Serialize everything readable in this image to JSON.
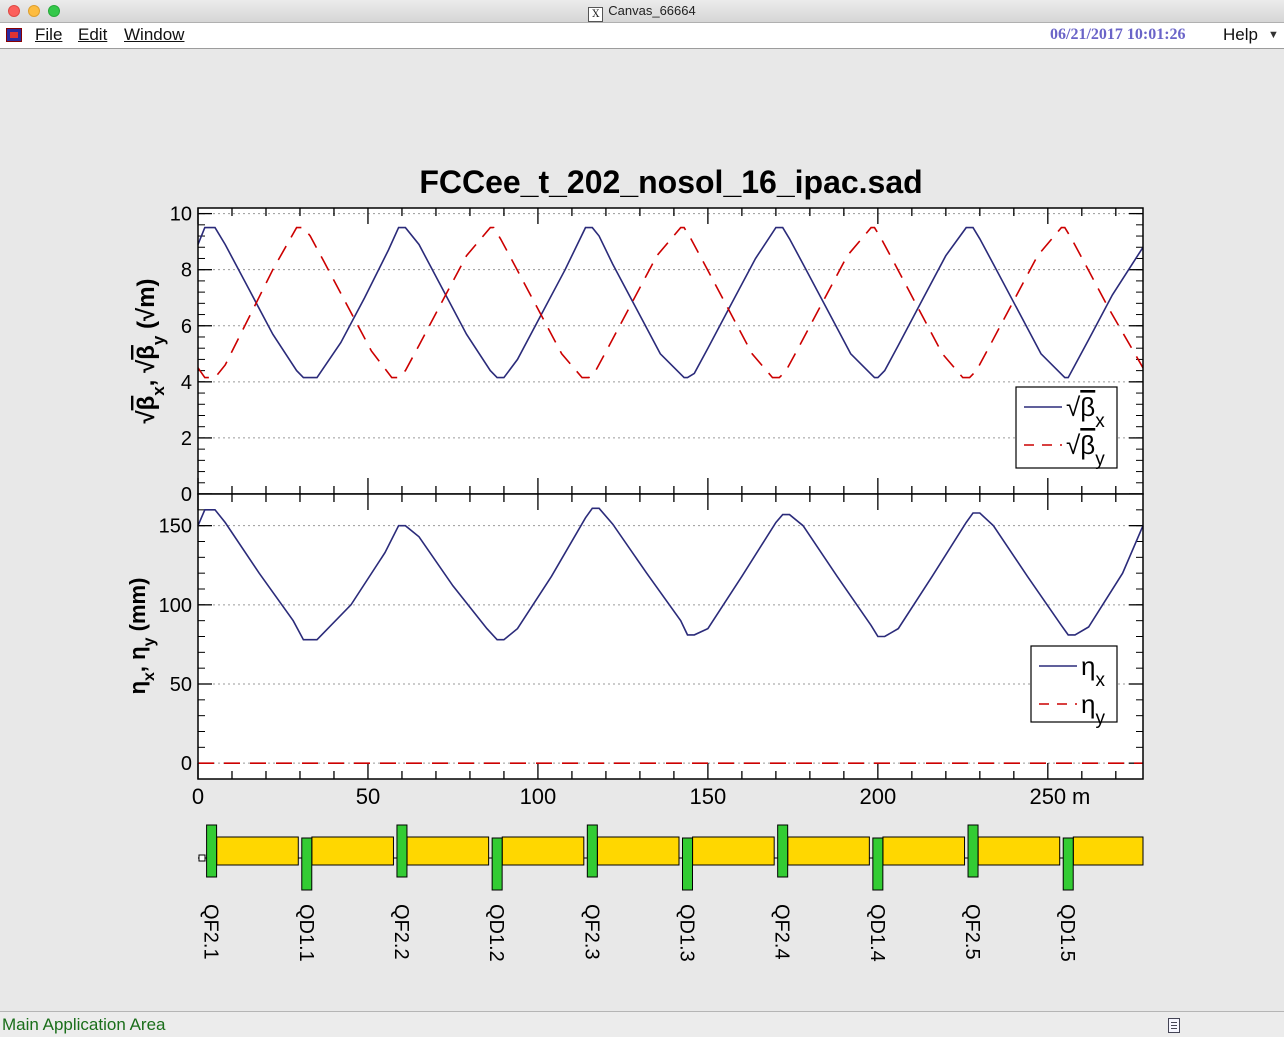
{
  "window": {
    "title": "Canvas_66664"
  },
  "menubar": {
    "items": [
      "File",
      "Edit",
      "Window"
    ],
    "datetime": "06/21/2017 10:01:26",
    "help": "Help"
  },
  "status": {
    "text": "Main Application Area"
  },
  "chart_data": [
    {
      "type": "line",
      "title": "FCCee_t_202_nosol_16_ipac.sad",
      "ylabel": "√βx, √βy (√m)",
      "xlim": [
        0,
        278
      ],
      "ylim": [
        0,
        10.2
      ],
      "y_ticks": [
        0,
        2,
        4,
        6,
        8,
        10
      ],
      "grid": true,
      "legend_position": "right",
      "series": [
        {
          "name": "√βx",
          "color": "#2b2b7a",
          "dash": "solid",
          "x": [
            0,
            2,
            5,
            8,
            15,
            22,
            29,
            31,
            35,
            42,
            49,
            56,
            59,
            61,
            65,
            72,
            79,
            86,
            88,
            90,
            94,
            101,
            108,
            114,
            116,
            118,
            122,
            129,
            136,
            143,
            144,
            146,
            150,
            157,
            164,
            170,
            172,
            174,
            178,
            185,
            192,
            199,
            200,
            202,
            206,
            213,
            220,
            226,
            228,
            230,
            234,
            241,
            248,
            255,
            256,
            258,
            262,
            269,
            278
          ],
          "y": [
            8.9,
            9.5,
            9.5,
            8.9,
            7.3,
            5.7,
            4.4,
            4.15,
            4.15,
            5.4,
            7.0,
            8.7,
            9.5,
            9.5,
            8.9,
            7.3,
            5.7,
            4.4,
            4.15,
            4.15,
            4.8,
            6.4,
            8.0,
            9.5,
            9.5,
            9.2,
            8.2,
            6.6,
            5.0,
            4.15,
            4.15,
            4.3,
            5.2,
            6.8,
            8.4,
            9.5,
            9.5,
            9.1,
            8.2,
            6.6,
            5.0,
            4.15,
            4.15,
            4.4,
            5.3,
            6.9,
            8.5,
            9.5,
            9.5,
            9.1,
            8.2,
            6.6,
            5.0,
            4.15,
            4.15,
            4.6,
            5.5,
            7.1,
            8.8
          ]
        },
        {
          "name": "√βy",
          "color": "#cc0000",
          "dash": "dashed",
          "x": [
            0,
            2,
            5,
            8,
            15,
            22,
            29,
            31,
            33,
            37,
            44,
            51,
            57,
            59,
            61,
            65,
            72,
            79,
            86,
            87,
            89,
            93,
            100,
            107,
            113,
            115,
            117,
            121,
            128,
            135,
            142,
            143,
            145,
            149,
            156,
            163,
            169,
            171,
            173,
            177,
            184,
            191,
            198,
            199,
            201,
            205,
            212,
            219,
            225,
            227,
            229,
            233,
            240,
            247,
            254,
            255,
            257,
            261,
            268,
            278
          ],
          "y": [
            4.5,
            4.15,
            4.15,
            4.6,
            6.3,
            8.0,
            9.5,
            9.5,
            9.2,
            8.3,
            6.7,
            5.1,
            4.15,
            4.15,
            4.4,
            5.3,
            6.9,
            8.5,
            9.5,
            9.5,
            9.1,
            8.2,
            6.6,
            5.0,
            4.15,
            4.15,
            4.4,
            5.3,
            6.9,
            8.5,
            9.5,
            9.5,
            9.1,
            8.2,
            6.6,
            5.0,
            4.15,
            4.15,
            4.4,
            5.3,
            6.9,
            8.5,
            9.5,
            9.5,
            9.1,
            8.2,
            6.6,
            5.0,
            4.15,
            4.15,
            4.4,
            5.3,
            6.9,
            8.5,
            9.5,
            9.5,
            9.1,
            8.2,
            6.6,
            4.5
          ]
        }
      ]
    },
    {
      "type": "line",
      "xlabel": "m",
      "ylabel": "ηx, ηy (mm)",
      "xlim": [
        0,
        278
      ],
      "ylim": [
        -10,
        170
      ],
      "x_ticks": [
        0,
        50,
        100,
        150,
        200,
        250
      ],
      "y_ticks": [
        0,
        50,
        100,
        150
      ],
      "grid": true,
      "legend_position": "right",
      "series": [
        {
          "name": "ηx",
          "color": "#2b2b7a",
          "dash": "solid",
          "x": [
            0,
            2,
            5,
            8,
            18,
            28,
            31,
            35,
            45,
            55,
            59,
            61,
            65,
            75,
            85,
            88,
            90,
            94,
            104,
            114,
            116,
            118,
            122,
            132,
            142,
            144,
            146,
            150,
            160,
            170,
            172,
            174,
            178,
            188,
            198,
            200,
            202,
            206,
            216,
            226,
            228,
            230,
            234,
            244,
            254,
            256,
            258,
            262,
            272,
            278
          ],
          "y": [
            150,
            160,
            160,
            152,
            120,
            90,
            78,
            78,
            100,
            133,
            150,
            150,
            143,
            112,
            85,
            78,
            78,
            85,
            118,
            155,
            161,
            161,
            151,
            120,
            90,
            81,
            81,
            85,
            118,
            152,
            157,
            157,
            150,
            118,
            87,
            80,
            80,
            85,
            118,
            152,
            158,
            158,
            150,
            118,
            87,
            81,
            81,
            86,
            120,
            150
          ]
        },
        {
          "name": "ηy",
          "color": "#cc0000",
          "dash": "dashed",
          "x": [
            0,
            278
          ],
          "y": [
            0,
            0
          ]
        }
      ]
    },
    {
      "type": "table",
      "magnet_labels": [
        "QF2.1",
        "QD1.1",
        "QF2.2",
        "QD1.2",
        "QF2.3",
        "QD1.3",
        "QF2.4",
        "QD1.4",
        "QF2.5",
        "QD1.5"
      ],
      "magnet_positions_m": [
        4,
        32,
        60,
        88,
        116,
        144,
        172,
        200,
        228,
        256
      ],
      "dipole_spans_m": [
        [
          5.5,
          29.5
        ],
        [
          33.5,
          57.5
        ],
        [
          61.5,
          85.5
        ],
        [
          89.5,
          113.5
        ],
        [
          117.5,
          141.5
        ],
        [
          145.5,
          169.5
        ],
        [
          173.5,
          197.5
        ],
        [
          201.5,
          225.5
        ],
        [
          229.5,
          253.5
        ],
        [
          257.5,
          278
        ]
      ],
      "colors": {
        "quad": "#33cc33",
        "dipole": "#ffd700"
      }
    }
  ]
}
